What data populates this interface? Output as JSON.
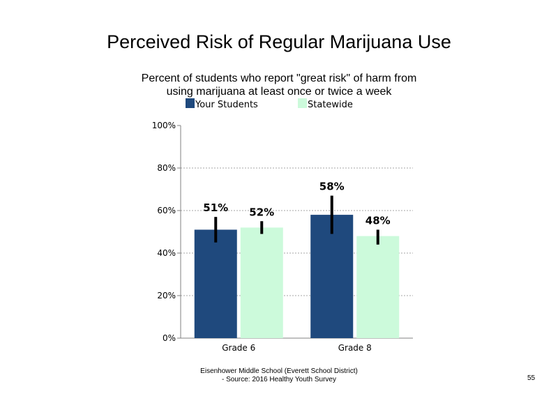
{
  "slide": {
    "title": "Perceived Risk of Regular Marijuana Use",
    "footer_line1": "Eisenhower Middle School (Everett School District)",
    "footer_line2": "- Source: 2016 Healthy  Youth Survey",
    "page_number": "55"
  },
  "chart_data": {
    "type": "bar",
    "title": "Perceived Risk of Regular Marijuana Use",
    "subtitle": "Percent of students who report \"great risk\" of harm from using marijuana at least once or twice a week",
    "categories": [
      "Grade 6",
      "Grade 8"
    ],
    "series": [
      {
        "name": "Your Students",
        "color": "#1f497d",
        "values": [
          51,
          58
        ],
        "labels": [
          "51%",
          "58%"
        ],
        "error_low": [
          45,
          49
        ],
        "error_high": [
          57,
          67
        ]
      },
      {
        "name": "Statewide",
        "color": "#ccfadb",
        "values": [
          52,
          48
        ],
        "labels": [
          "52%",
          "48%"
        ],
        "error_low": [
          49,
          44
        ],
        "error_high": [
          55,
          51
        ]
      }
    ],
    "ylim": [
      0,
      100
    ],
    "yticks": [
      "0%",
      "20%",
      "40%",
      "60%",
      "80%",
      "100%"
    ],
    "xlabel": "",
    "ylabel": "",
    "grid": true,
    "legend": "top"
  }
}
